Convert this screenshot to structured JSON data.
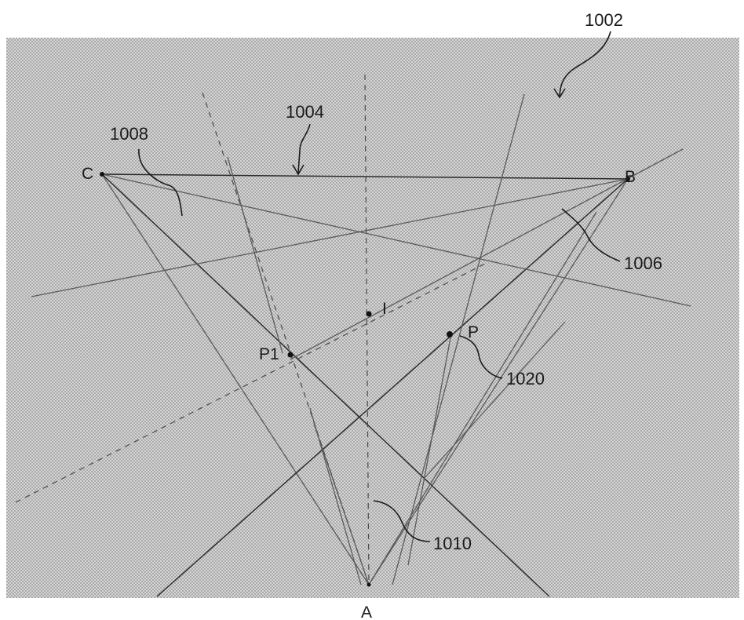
{
  "points": {
    "A": "A",
    "B": "B",
    "C": "C",
    "I": "I",
    "P": "P",
    "P1": "P1"
  },
  "references": {
    "r1002": "1002",
    "r1004": "1004",
    "r1006": "1006",
    "r1008": "1008",
    "r1010": "1010",
    "r1020": "1020"
  },
  "colors": {
    "background_pattern": "#c8c8c8",
    "line": "#3a3a3a",
    "text": "#1a1a1a"
  }
}
